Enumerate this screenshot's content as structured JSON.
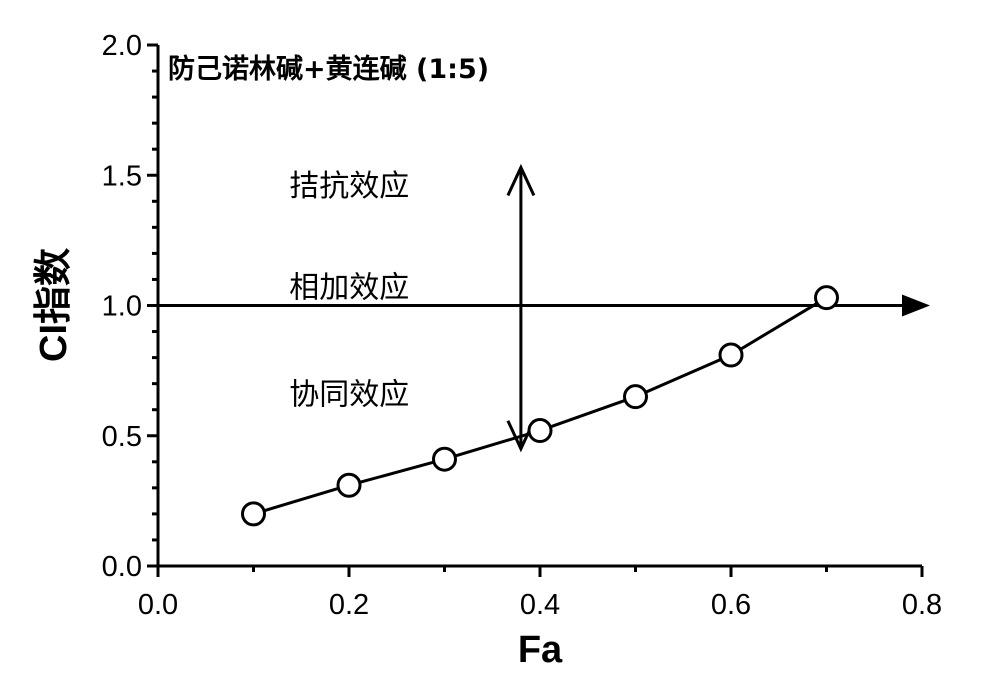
{
  "chart_data": {
    "type": "line",
    "title": "防己诺林碱+黄连碱 (1:5)",
    "xlabel": "Fa",
    "ylabel": "CI指数",
    "xlim": [
      0.0,
      0.8
    ],
    "ylim": [
      0.0,
      2.0
    ],
    "x_ticks": [
      "0.0",
      "0.2",
      "0.4",
      "0.6",
      "0.8"
    ],
    "y_ticks": [
      "0.0",
      "0.5",
      "1.0",
      "1.5",
      "2.0"
    ],
    "series": [
      {
        "x": [
          0.1,
          0.2,
          0.3,
          0.4,
          0.5,
          0.6,
          0.7
        ],
        "y": [
          0.2,
          0.31,
          0.41,
          0.52,
          0.65,
          0.81,
          1.03
        ]
      }
    ],
    "reference_line": {
      "y": 1.0
    },
    "vertical_arrow": {
      "x": 0.38,
      "y_from": 0.45,
      "y_to": 1.53
    },
    "annotations": [
      {
        "text": "拮抗效应",
        "x": 0.15,
        "y": 1.42
      },
      {
        "text": "相加效应",
        "x": 0.15,
        "y": 1.03
      },
      {
        "text": "协同效应",
        "x": 0.15,
        "y": 0.62
      }
    ],
    "grid": false,
    "legend": "none"
  }
}
